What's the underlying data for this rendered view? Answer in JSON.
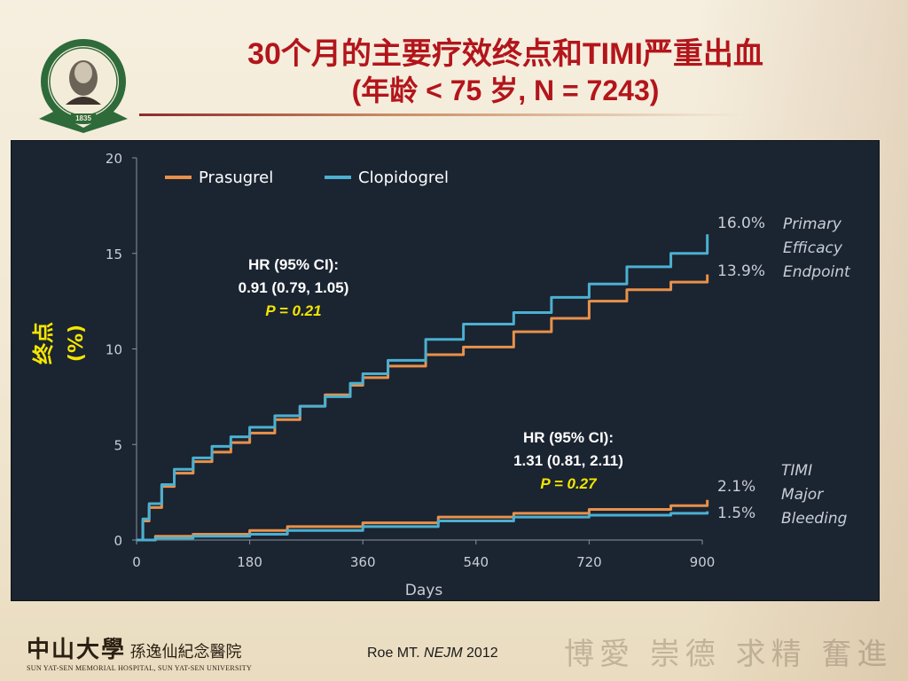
{
  "slide": {
    "title_line1": "30个月的主要疗效终点和TIMI严重出血",
    "title_line2": "(年龄 < 75 岁, N = 7243)",
    "citation_author": "Roe MT. ",
    "citation_journal": "NEJM",
    "citation_year": " 2012",
    "footer_logo_cn": "中山大學",
    "footer_logo_cn2": "孫逸仙紀念醫院",
    "footer_logo_en": "SUN YAT-SEN MEMORIAL HOSPITAL, SUN YAT-SEN UNIVERSITY",
    "motto": "博愛 崇德 求精 奮進",
    "logo_year": "1835"
  },
  "colors": {
    "title": "#b3151b",
    "panel_bg": "#1b2431",
    "prasugrel": "#e8914a",
    "clopidogrel": "#4bb0d1",
    "axis_text": "#c9ced6",
    "stat_text": "#ffffff",
    "p_value": "#f5e600"
  },
  "chart_data": {
    "type": "line",
    "xlabel": "Days",
    "ylabel_line1": "终点",
    "ylabel_line2": "(%)",
    "xlim": [
      0,
      900
    ],
    "ylim": [
      0,
      20
    ],
    "xticks": [
      0,
      180,
      360,
      540,
      720,
      900
    ],
    "yticks": [
      0,
      5,
      10,
      15,
      20
    ],
    "legend": {
      "placement": "top-left",
      "items": [
        {
          "name": "Prasugrel",
          "color": "#e8914a"
        },
        {
          "name": "Clopidogrel",
          "color": "#4bb0d1"
        }
      ]
    },
    "series": [
      {
        "name": "Prasugrel",
        "endpoint": "Primary Efficacy Endpoint",
        "color": "#e8914a",
        "x": [
          0,
          10,
          20,
          40,
          60,
          90,
          120,
          150,
          180,
          220,
          260,
          300,
          340,
          360,
          400,
          460,
          520,
          600,
          660,
          720,
          780,
          850,
          908
        ],
        "y": [
          0,
          1.0,
          1.7,
          2.8,
          3.5,
          4.1,
          4.6,
          5.1,
          5.6,
          6.3,
          7.0,
          7.6,
          8.1,
          8.5,
          9.1,
          9.7,
          10.1,
          10.9,
          11.6,
          12.5,
          13.1,
          13.5,
          13.9
        ]
      },
      {
        "name": "Clopidogrel",
        "endpoint": "Primary Efficacy Endpoint",
        "color": "#4bb0d1",
        "x": [
          0,
          10,
          20,
          40,
          60,
          90,
          120,
          150,
          180,
          220,
          260,
          300,
          340,
          360,
          400,
          460,
          520,
          600,
          660,
          720,
          780,
          850,
          908
        ],
        "y": [
          0,
          1.1,
          1.9,
          2.9,
          3.7,
          4.3,
          4.9,
          5.4,
          5.9,
          6.5,
          7.0,
          7.5,
          8.2,
          8.7,
          9.4,
          10.5,
          11.3,
          11.9,
          12.7,
          13.4,
          14.3,
          15.0,
          16.0
        ]
      },
      {
        "name": "Prasugrel",
        "endpoint": "TIMI Major Bleeding",
        "color": "#e8914a",
        "x": [
          0,
          30,
          90,
          180,
          240,
          360,
          480,
          600,
          720,
          850,
          908
        ],
        "y": [
          0,
          0.2,
          0.3,
          0.5,
          0.7,
          0.9,
          1.2,
          1.4,
          1.6,
          1.8,
          2.1
        ]
      },
      {
        "name": "Clopidogrel",
        "endpoint": "TIMI Major Bleeding",
        "color": "#4bb0d1",
        "x": [
          0,
          30,
          90,
          180,
          240,
          360,
          480,
          600,
          720,
          850,
          908
        ],
        "y": [
          0,
          0.1,
          0.2,
          0.3,
          0.5,
          0.7,
          1.0,
          1.2,
          1.3,
          1.4,
          1.5
        ]
      }
    ],
    "end_labels": [
      {
        "text": "16.0%",
        "y": 16.0
      },
      {
        "text": "13.9%",
        "y": 13.9
      },
      {
        "text": "2.1%",
        "y": 2.1
      },
      {
        "text": "1.5%",
        "y": 1.5
      }
    ],
    "endpoint_labels": [
      {
        "lines": [
          "Primary",
          "Efficacy",
          "Endpoint"
        ]
      },
      {
        "lines": [
          "TIMI",
          "Major",
          "Bleeding"
        ]
      }
    ],
    "annotations": [
      {
        "line1": "HR (95% CI):",
        "line2": "0.91 (0.79, 1.05)",
        "pvalue": "P = 0.21"
      },
      {
        "line1": "HR (95% CI):",
        "line2": "1.31 (0.81, 2.11)",
        "pvalue": "P = 0.27"
      }
    ]
  }
}
